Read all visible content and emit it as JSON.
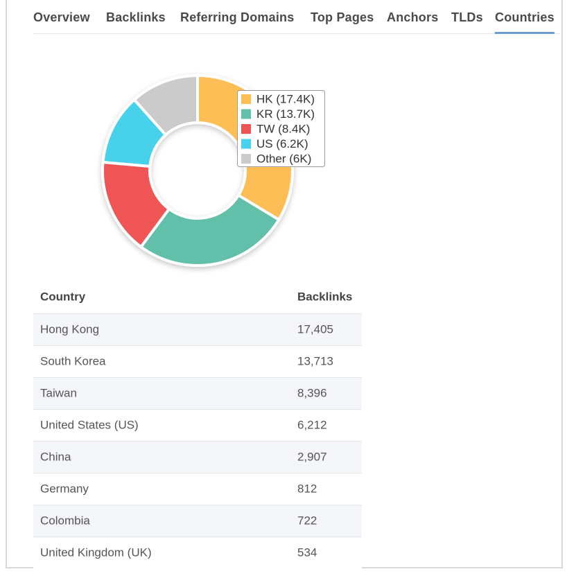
{
  "tabs": [
    "Overview",
    "Backlinks",
    "Referring Domains",
    "Top Pages",
    "Anchors",
    "TLDs",
    "Countries"
  ],
  "active_tab": 6,
  "chart_data": {
    "type": "pie",
    "donut": true,
    "categories": [
      "HK",
      "KR",
      "TW",
      "US",
      "Other"
    ],
    "values": [
      17.4,
      13.7,
      8.4,
      6.2,
      6
    ],
    "legend_labels": [
      "HK (17.4K)",
      "KR (13.7K)",
      "TW (8.4K)",
      "US (6.2K)",
      "Other (6K)"
    ],
    "colors": [
      "#fdbf55",
      "#62bfa9",
      "#ef5455",
      "#47d1ea",
      "#cbcbcb"
    ]
  },
  "table": {
    "header": [
      "Country",
      "Backlinks"
    ],
    "rows": [
      [
        "Hong Kong",
        "17,405"
      ],
      [
        "South Korea",
        "13,713"
      ],
      [
        "Taiwan",
        "8,396"
      ],
      [
        "United States (US)",
        "6,212"
      ],
      [
        "China",
        "2,907"
      ],
      [
        "Germany",
        "812"
      ],
      [
        "Colombia",
        "722"
      ],
      [
        "United Kingdom (UK)",
        "534"
      ]
    ]
  }
}
